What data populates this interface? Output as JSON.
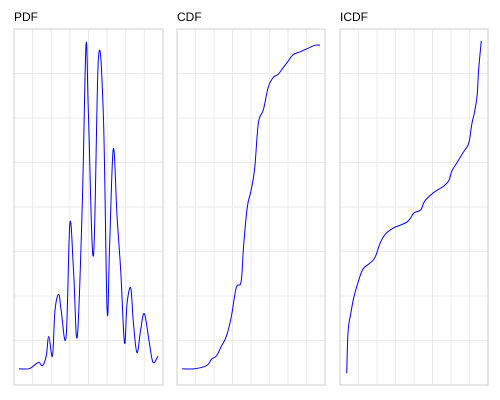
{
  "chart_data": [
    {
      "type": "line",
      "title": "PDF",
      "xlabel": "",
      "ylabel": "",
      "grid": true,
      "xlim": [
        -3.0,
        3.0
      ],
      "ylim": [
        -0.05,
        1.05
      ],
      "line_color": "#0000ff",
      "series": [
        {
          "x": [
            -2.8,
            -2.4,
            -2.2,
            -2.0,
            -1.85,
            -1.7,
            -1.6,
            -1.45,
            -1.35,
            -1.2,
            -1.1,
            -0.9,
            -0.75,
            -0.6,
            -0.45,
            -0.25,
            -0.1,
            0.0,
            0.2,
            0.4,
            0.6,
            0.75,
            0.85,
            1.0,
            1.15,
            1.3,
            1.45,
            1.55,
            1.7,
            1.8,
            1.95,
            2.1,
            2.25,
            2.45,
            2.6,
            2.8
          ],
          "y": [
            0.0,
            0.0,
            0.01,
            0.02,
            0.01,
            0.04,
            0.1,
            0.04,
            0.18,
            0.23,
            0.18,
            0.1,
            0.45,
            0.3,
            0.1,
            0.51,
            1.0,
            0.78,
            0.35,
            0.96,
            0.78,
            0.18,
            0.38,
            0.68,
            0.47,
            0.3,
            0.08,
            0.2,
            0.25,
            0.15,
            0.05,
            0.12,
            0.17,
            0.08,
            0.02,
            0.04
          ]
        }
      ]
    },
    {
      "type": "line",
      "title": "CDF",
      "xlabel": "",
      "ylabel": "",
      "grid": true,
      "xlim": [
        -3.0,
        3.0
      ],
      "ylim": [
        -0.05,
        1.05
      ],
      "line_color": "#0000ff",
      "series": [
        {
          "x": [
            -2.8,
            -2.3,
            -1.8,
            -1.6,
            -1.4,
            -1.2,
            -1.0,
            -0.8,
            -0.6,
            -0.4,
            -0.3,
            -0.15,
            0.0,
            0.15,
            0.3,
            0.5,
            0.7,
            0.9,
            1.1,
            1.3,
            1.5,
            1.7,
            2.0,
            2.3,
            2.6,
            2.8
          ],
          "y": [
            0.0,
            0.0,
            0.01,
            0.03,
            0.04,
            0.07,
            0.1,
            0.16,
            0.25,
            0.27,
            0.38,
            0.5,
            0.55,
            0.62,
            0.76,
            0.8,
            0.87,
            0.9,
            0.91,
            0.93,
            0.95,
            0.97,
            0.98,
            0.99,
            1.0,
            1.0
          ]
        }
      ]
    },
    {
      "type": "line",
      "title": "ICDF",
      "xlabel": "",
      "ylabel": "",
      "grid": true,
      "xlim": [
        -0.05,
        1.05
      ],
      "ylim": [
        -3.0,
        3.0
      ],
      "line_color": "#0000ff",
      "series": [
        {
          "x": [
            0.0,
            0.01,
            0.03,
            0.05,
            0.08,
            0.12,
            0.17,
            0.21,
            0.25,
            0.29,
            0.35,
            0.45,
            0.5,
            0.55,
            0.58,
            0.65,
            0.72,
            0.76,
            0.78,
            0.82,
            0.86,
            0.89,
            0.91,
            0.93,
            0.95,
            0.97,
            0.98,
            1.0
          ],
          "y": [
            -2.8,
            -2.1,
            -1.8,
            -1.55,
            -1.3,
            -1.05,
            -0.95,
            -0.85,
            -0.6,
            -0.45,
            -0.35,
            -0.25,
            -0.1,
            -0.05,
            0.1,
            0.25,
            0.35,
            0.45,
            0.6,
            0.75,
            0.9,
            1.0,
            1.1,
            1.4,
            1.6,
            1.9,
            2.3,
            2.8
          ]
        }
      ]
    }
  ]
}
